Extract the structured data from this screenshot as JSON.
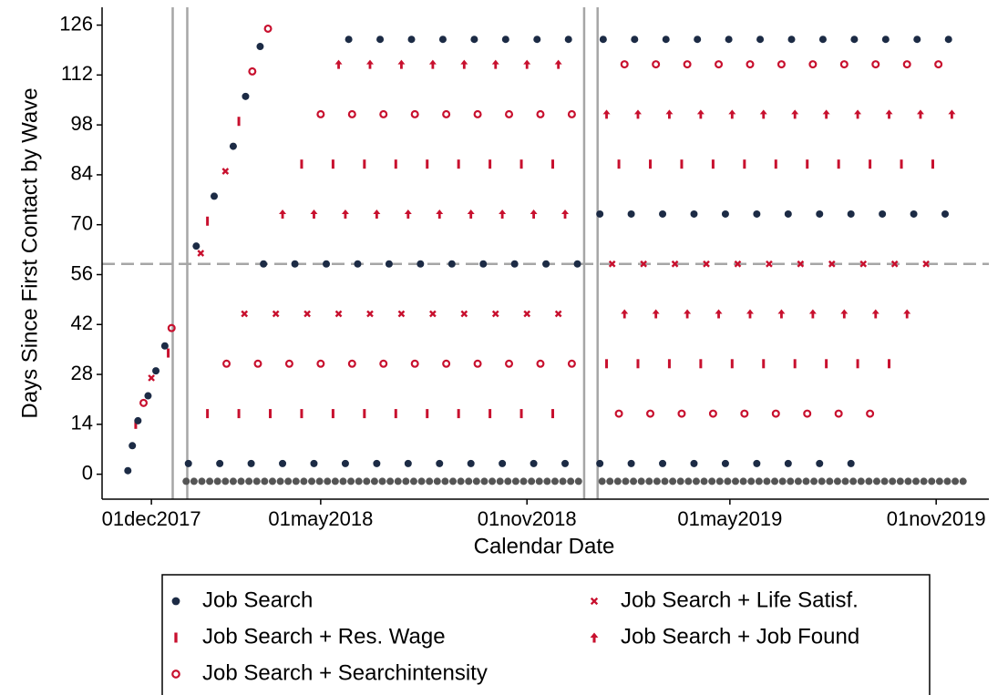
{
  "chart_data": {
    "type": "scatter",
    "x_label": "Calendar Date",
    "y_label": "Days Since First Contact by Wave",
    "xlim": [
      "2017-10-18",
      "2019-12-18"
    ],
    "ylim": [
      -7,
      131
    ],
    "xticks": [
      {
        "value": "2017-12-01",
        "label": "01dec2017"
      },
      {
        "value": "2018-05-01",
        "label": "01may2018"
      },
      {
        "value": "2018-11-01",
        "label": "01nov2018"
      },
      {
        "value": "2019-05-01",
        "label": "01may2019"
      },
      {
        "value": "2019-11-01",
        "label": "01nov2019"
      }
    ],
    "yticks": [
      0,
      14,
      28,
      42,
      56,
      70,
      84,
      98,
      112,
      126
    ],
    "vlines": [
      "2017-12-20",
      "2018-01-02",
      "2018-12-22",
      "2019-01-03"
    ],
    "hline": 59,
    "legend": "bottom",
    "series": [
      {
        "name": "Job Search",
        "color": "#1c2b45",
        "marker": "circle",
        "x": [
          "2017-11-10",
          "2017-11-14",
          "2017-11-19",
          "2017-11-28",
          "2017-12-05",
          "2017-12-13",
          "2018-01-10",
          "2018-01-26",
          "2018-02-12",
          "2018-02-23",
          "2018-03-08",
          "2018-01-03",
          "2018-01-31",
          "2018-02-28",
          "2018-03-28",
          "2018-04-25",
          "2018-05-23",
          "2018-06-20",
          "2018-07-18",
          "2018-08-15",
          "2018-09-12",
          "2018-10-10",
          "2018-11-07",
          "2018-12-05",
          "2018-03-11",
          "2018-04-08",
          "2018-05-06",
          "2018-06-03",
          "2018-07-01",
          "2018-07-29",
          "2018-08-26",
          "2018-09-23",
          "2018-10-21",
          "2018-11-18",
          "2018-12-16",
          "2018-05-26",
          "2018-06-23",
          "2018-07-21",
          "2018-08-18",
          "2018-09-15",
          "2018-10-13",
          "2018-11-10",
          "2018-12-08",
          "2019-01-05",
          "2019-02-02",
          "2019-03-02",
          "2019-03-30",
          "2019-04-27",
          "2019-05-25",
          "2019-06-22",
          "2019-07-20",
          "2019-08-17",
          "2019-01-05",
          "2019-02-02",
          "2019-03-02",
          "2019-03-30",
          "2019-04-27",
          "2019-05-25",
          "2019-06-22",
          "2019-07-20",
          "2019-08-17",
          "2019-09-14",
          "2019-10-12",
          "2019-11-09",
          "2019-01-08",
          "2019-02-05",
          "2019-03-05",
          "2019-04-02",
          "2019-04-30",
          "2019-05-28",
          "2019-06-25",
          "2019-07-23",
          "2019-08-20",
          "2019-09-17",
          "2019-10-15",
          "2019-11-12"
        ],
        "values": [
          1,
          8,
          15,
          22,
          29,
          36,
          64,
          78,
          92,
          106,
          120,
          3,
          3,
          3,
          3,
          3,
          3,
          3,
          3,
          3,
          3,
          3,
          3,
          3,
          59,
          59,
          59,
          59,
          59,
          59,
          59,
          59,
          59,
          59,
          59,
          122,
          122,
          122,
          122,
          122,
          122,
          122,
          122,
          3,
          3,
          3,
          3,
          3,
          3,
          3,
          3,
          3,
          73,
          73,
          73,
          73,
          73,
          73,
          73,
          73,
          73,
          73,
          73,
          73,
          122,
          122,
          122,
          122,
          122,
          122,
          122,
          122,
          122,
          122,
          122,
          122
        ]
      },
      {
        "name": "Job Search + Res. Wage",
        "color": "#c8102e",
        "marker": "bar",
        "x": [
          "2017-11-17",
          "2017-12-16",
          "2018-01-20",
          "2018-02-17",
          "2018-01-20",
          "2018-02-17",
          "2018-03-17",
          "2018-04-14",
          "2018-05-12",
          "2018-06-09",
          "2018-07-07",
          "2018-08-04",
          "2018-09-01",
          "2018-09-29",
          "2018-10-27",
          "2018-11-24",
          "2018-04-14",
          "2018-05-12",
          "2018-06-09",
          "2018-07-07",
          "2018-08-04",
          "2018-09-01",
          "2018-09-29",
          "2018-10-27",
          "2018-11-24",
          "2019-01-11",
          "2019-02-08",
          "2019-03-08",
          "2019-04-05",
          "2019-05-03",
          "2019-05-31",
          "2019-06-28",
          "2019-07-26",
          "2019-08-23",
          "2019-09-20",
          "2019-01-22",
          "2019-02-19",
          "2019-03-19",
          "2019-04-16",
          "2019-05-14",
          "2019-06-11",
          "2019-07-09",
          "2019-08-06",
          "2019-09-03",
          "2019-10-01",
          "2019-10-29"
        ],
        "values": [
          14,
          34,
          71,
          99,
          17,
          17,
          17,
          17,
          17,
          17,
          17,
          17,
          17,
          17,
          17,
          17,
          87,
          87,
          87,
          87,
          87,
          87,
          87,
          87,
          87,
          31,
          31,
          31,
          31,
          31,
          31,
          31,
          31,
          31,
          31,
          87,
          87,
          87,
          87,
          87,
          87,
          87,
          87,
          87,
          87,
          87
        ]
      },
      {
        "name": "Job Search + Searchintensity",
        "color": "#c8102e",
        "marker": "ring",
        "x": [
          "2017-11-24",
          "2017-12-19",
          "2018-03-01",
          "2018-03-15",
          "2018-02-06",
          "2018-03-06",
          "2018-04-03",
          "2018-05-01",
          "2018-05-29",
          "2018-06-26",
          "2018-07-24",
          "2018-08-21",
          "2018-09-18",
          "2018-10-16",
          "2018-11-13",
          "2018-12-11",
          "2018-05-01",
          "2018-05-29",
          "2018-06-26",
          "2018-07-24",
          "2018-08-21",
          "2018-09-18",
          "2018-10-16",
          "2018-11-13",
          "2018-12-11",
          "2019-01-22",
          "2019-02-19",
          "2019-03-19",
          "2019-04-16",
          "2019-05-14",
          "2019-06-11",
          "2019-07-09",
          "2019-08-06",
          "2019-09-03",
          "2019-01-27",
          "2019-02-24",
          "2019-03-24",
          "2019-04-21",
          "2019-05-19",
          "2019-06-16",
          "2019-07-14",
          "2019-08-11",
          "2019-09-08",
          "2019-10-06",
          "2019-11-03"
        ],
        "values": [
          20,
          41,
          113,
          125,
          31,
          31,
          31,
          31,
          31,
          31,
          31,
          31,
          31,
          31,
          31,
          31,
          101,
          101,
          101,
          101,
          101,
          101,
          101,
          101,
          101,
          17,
          17,
          17,
          17,
          17,
          17,
          17,
          17,
          17,
          115,
          115,
          115,
          115,
          115,
          115,
          115,
          115,
          115,
          115,
          115
        ]
      },
      {
        "name": "Job Search + Life Satisf.",
        "color": "#c8102e",
        "marker": "cross",
        "x": [
          "2017-12-01",
          "2018-01-14",
          "2018-02-05",
          "2018-02-22",
          "2018-03-22",
          "2018-04-19",
          "2018-05-17",
          "2018-06-14",
          "2018-07-12",
          "2018-08-09",
          "2018-09-06",
          "2018-10-04",
          "2018-11-01",
          "2018-11-29",
          "2019-01-16",
          "2019-02-13",
          "2019-03-13",
          "2019-04-10",
          "2019-05-08",
          "2019-06-05",
          "2019-07-03",
          "2019-07-31",
          "2019-08-28",
          "2019-09-25",
          "2019-10-23"
        ],
        "values": [
          27,
          62,
          85,
          45,
          45,
          45,
          45,
          45,
          45,
          45,
          45,
          45,
          45,
          45,
          59,
          59,
          59,
          59,
          59,
          59,
          59,
          59,
          59,
          59,
          59
        ]
      },
      {
        "name": "Job Search + Job Found",
        "color": "#c8102e",
        "marker": "arrow",
        "x": [
          "2018-03-28",
          "2018-04-25",
          "2018-05-23",
          "2018-06-20",
          "2018-07-18",
          "2018-08-15",
          "2018-09-12",
          "2018-10-10",
          "2018-11-07",
          "2018-12-05",
          "2018-05-17",
          "2018-06-14",
          "2018-07-12",
          "2018-08-09",
          "2018-09-06",
          "2018-10-04",
          "2018-11-01",
          "2018-11-29",
          "2019-01-27",
          "2019-02-24",
          "2019-03-24",
          "2019-04-21",
          "2019-05-19",
          "2019-06-16",
          "2019-07-14",
          "2019-08-11",
          "2019-09-08",
          "2019-10-06",
          "2019-01-11",
          "2019-02-08",
          "2019-03-08",
          "2019-04-05",
          "2019-05-03",
          "2019-05-31",
          "2019-06-28",
          "2019-07-26",
          "2019-08-23",
          "2019-09-20",
          "2019-10-18",
          "2019-11-15"
        ],
        "values": [
          73,
          73,
          73,
          73,
          73,
          73,
          73,
          73,
          73,
          73,
          115,
          115,
          115,
          115,
          115,
          115,
          115,
          115,
          45,
          45,
          45,
          45,
          45,
          45,
          45,
          45,
          45,
          45,
          101,
          101,
          101,
          101,
          101,
          101,
          101,
          101,
          101,
          101,
          101,
          101
        ]
      },
      {
        "color": "#555555",
        "marker": "circle",
        "x": [
          "2018-01-01",
          "2018-01-08",
          "2018-01-15",
          "2018-01-22",
          "2018-01-29",
          "2018-02-05",
          "2018-02-12",
          "2018-02-19",
          "2018-02-26",
          "2018-03-05",
          "2018-03-12",
          "2018-03-19",
          "2018-03-26",
          "2018-04-02",
          "2018-04-09",
          "2018-04-16",
          "2018-04-23",
          "2018-04-30",
          "2018-05-07",
          "2018-05-14",
          "2018-05-21",
          "2018-05-28",
          "2018-06-04",
          "2018-06-11",
          "2018-06-18",
          "2018-06-25",
          "2018-07-02",
          "2018-07-09",
          "2018-07-16",
          "2018-07-23",
          "2018-07-30",
          "2018-08-06",
          "2018-08-13",
          "2018-08-20",
          "2018-08-27",
          "2018-09-03",
          "2018-09-10",
          "2018-09-17",
          "2018-09-24",
          "2018-10-01",
          "2018-10-08",
          "2018-10-15",
          "2018-10-22",
          "2018-10-29",
          "2018-11-05",
          "2018-11-12",
          "2018-11-19",
          "2018-11-26",
          "2018-12-03",
          "2018-12-10",
          "2018-12-17",
          "2019-01-07",
          "2019-01-14",
          "2019-01-21",
          "2019-01-28",
          "2019-02-04",
          "2019-02-11",
          "2019-02-18",
          "2019-02-25",
          "2019-03-04",
          "2019-03-11",
          "2019-03-18",
          "2019-03-25",
          "2019-04-01",
          "2019-04-08",
          "2019-04-15",
          "2019-04-22",
          "2019-04-29",
          "2019-05-06",
          "2019-05-13",
          "2019-05-20",
          "2019-05-27",
          "2019-06-03",
          "2019-06-10",
          "2019-06-17",
          "2019-06-24",
          "2019-07-01",
          "2019-07-08",
          "2019-07-15",
          "2019-07-22",
          "2019-07-29",
          "2019-08-05",
          "2019-08-12",
          "2019-08-19",
          "2019-08-26",
          "2019-09-02",
          "2019-09-09",
          "2019-09-16",
          "2019-09-23",
          "2019-09-30",
          "2019-10-07",
          "2019-10-14",
          "2019-10-21",
          "2019-10-28",
          "2019-11-04",
          "2019-11-11",
          "2019-11-18",
          "2019-11-25"
        ],
        "values": [
          -2,
          -2,
          -2,
          -2,
          -2,
          -2,
          -2,
          -2,
          -2,
          -2,
          -2,
          -2,
          -2,
          -2,
          -2,
          -2,
          -2,
          -2,
          -2,
          -2,
          -2,
          -2,
          -2,
          -2,
          -2,
          -2,
          -2,
          -2,
          -2,
          -2,
          -2,
          -2,
          -2,
          -2,
          -2,
          -2,
          -2,
          -2,
          -2,
          -2,
          -2,
          -2,
          -2,
          -2,
          -2,
          -2,
          -2,
          -2,
          -2,
          -2,
          -2,
          -2,
          -2,
          -2,
          -2,
          -2,
          -2,
          -2,
          -2,
          -2,
          -2,
          -2,
          -2,
          -2,
          -2,
          -2,
          -2,
          -2,
          -2,
          -2,
          -2,
          -2,
          -2,
          -2,
          -2,
          -2,
          -2,
          -2,
          -2,
          -2,
          -2,
          -2,
          -2,
          -2,
          -2,
          -2,
          -2,
          -2,
          -2,
          -2,
          -2,
          -2,
          -2,
          -2,
          -2,
          -2,
          -2,
          -2
        ]
      }
    ]
  }
}
